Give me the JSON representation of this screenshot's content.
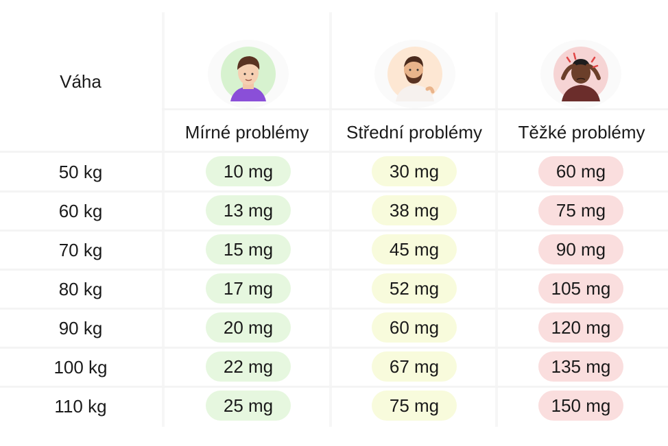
{
  "header": {
    "weight_label": "Váha",
    "columns": [
      {
        "label": "Mírné problémy",
        "avatar": "mild-person-icon",
        "pill_color": "#e6f7df"
      },
      {
        "label": "Střední problémy",
        "avatar": "bearded-man-back-pain-icon",
        "pill_color": "#f8fbdc"
      },
      {
        "label": "Těžké problémy",
        "avatar": "person-headache-icon",
        "pill_color": "#fadede"
      }
    ]
  },
  "rows": [
    {
      "weight": "50 kg",
      "mild": "10 mg",
      "mid": "30 mg",
      "severe": "60 mg"
    },
    {
      "weight": "60 kg",
      "mild": "13 mg",
      "mid": "38 mg",
      "severe": "75 mg"
    },
    {
      "weight": "70 kg",
      "mild": "15 mg",
      "mid": "45 mg",
      "severe": "90 mg"
    },
    {
      "weight": "80 kg",
      "mild": "17 mg",
      "mid": "52 mg",
      "severe": "105 mg"
    },
    {
      "weight": "90 kg",
      "mild": "20 mg",
      "mid": "60 mg",
      "severe": "120 mg"
    },
    {
      "weight": "100 kg",
      "mild": "22 mg",
      "mid": "67 mg",
      "severe": "135 mg"
    },
    {
      "weight": "110 kg",
      "mild": "25 mg",
      "mid": "75 mg",
      "severe": "150 mg"
    }
  ]
}
